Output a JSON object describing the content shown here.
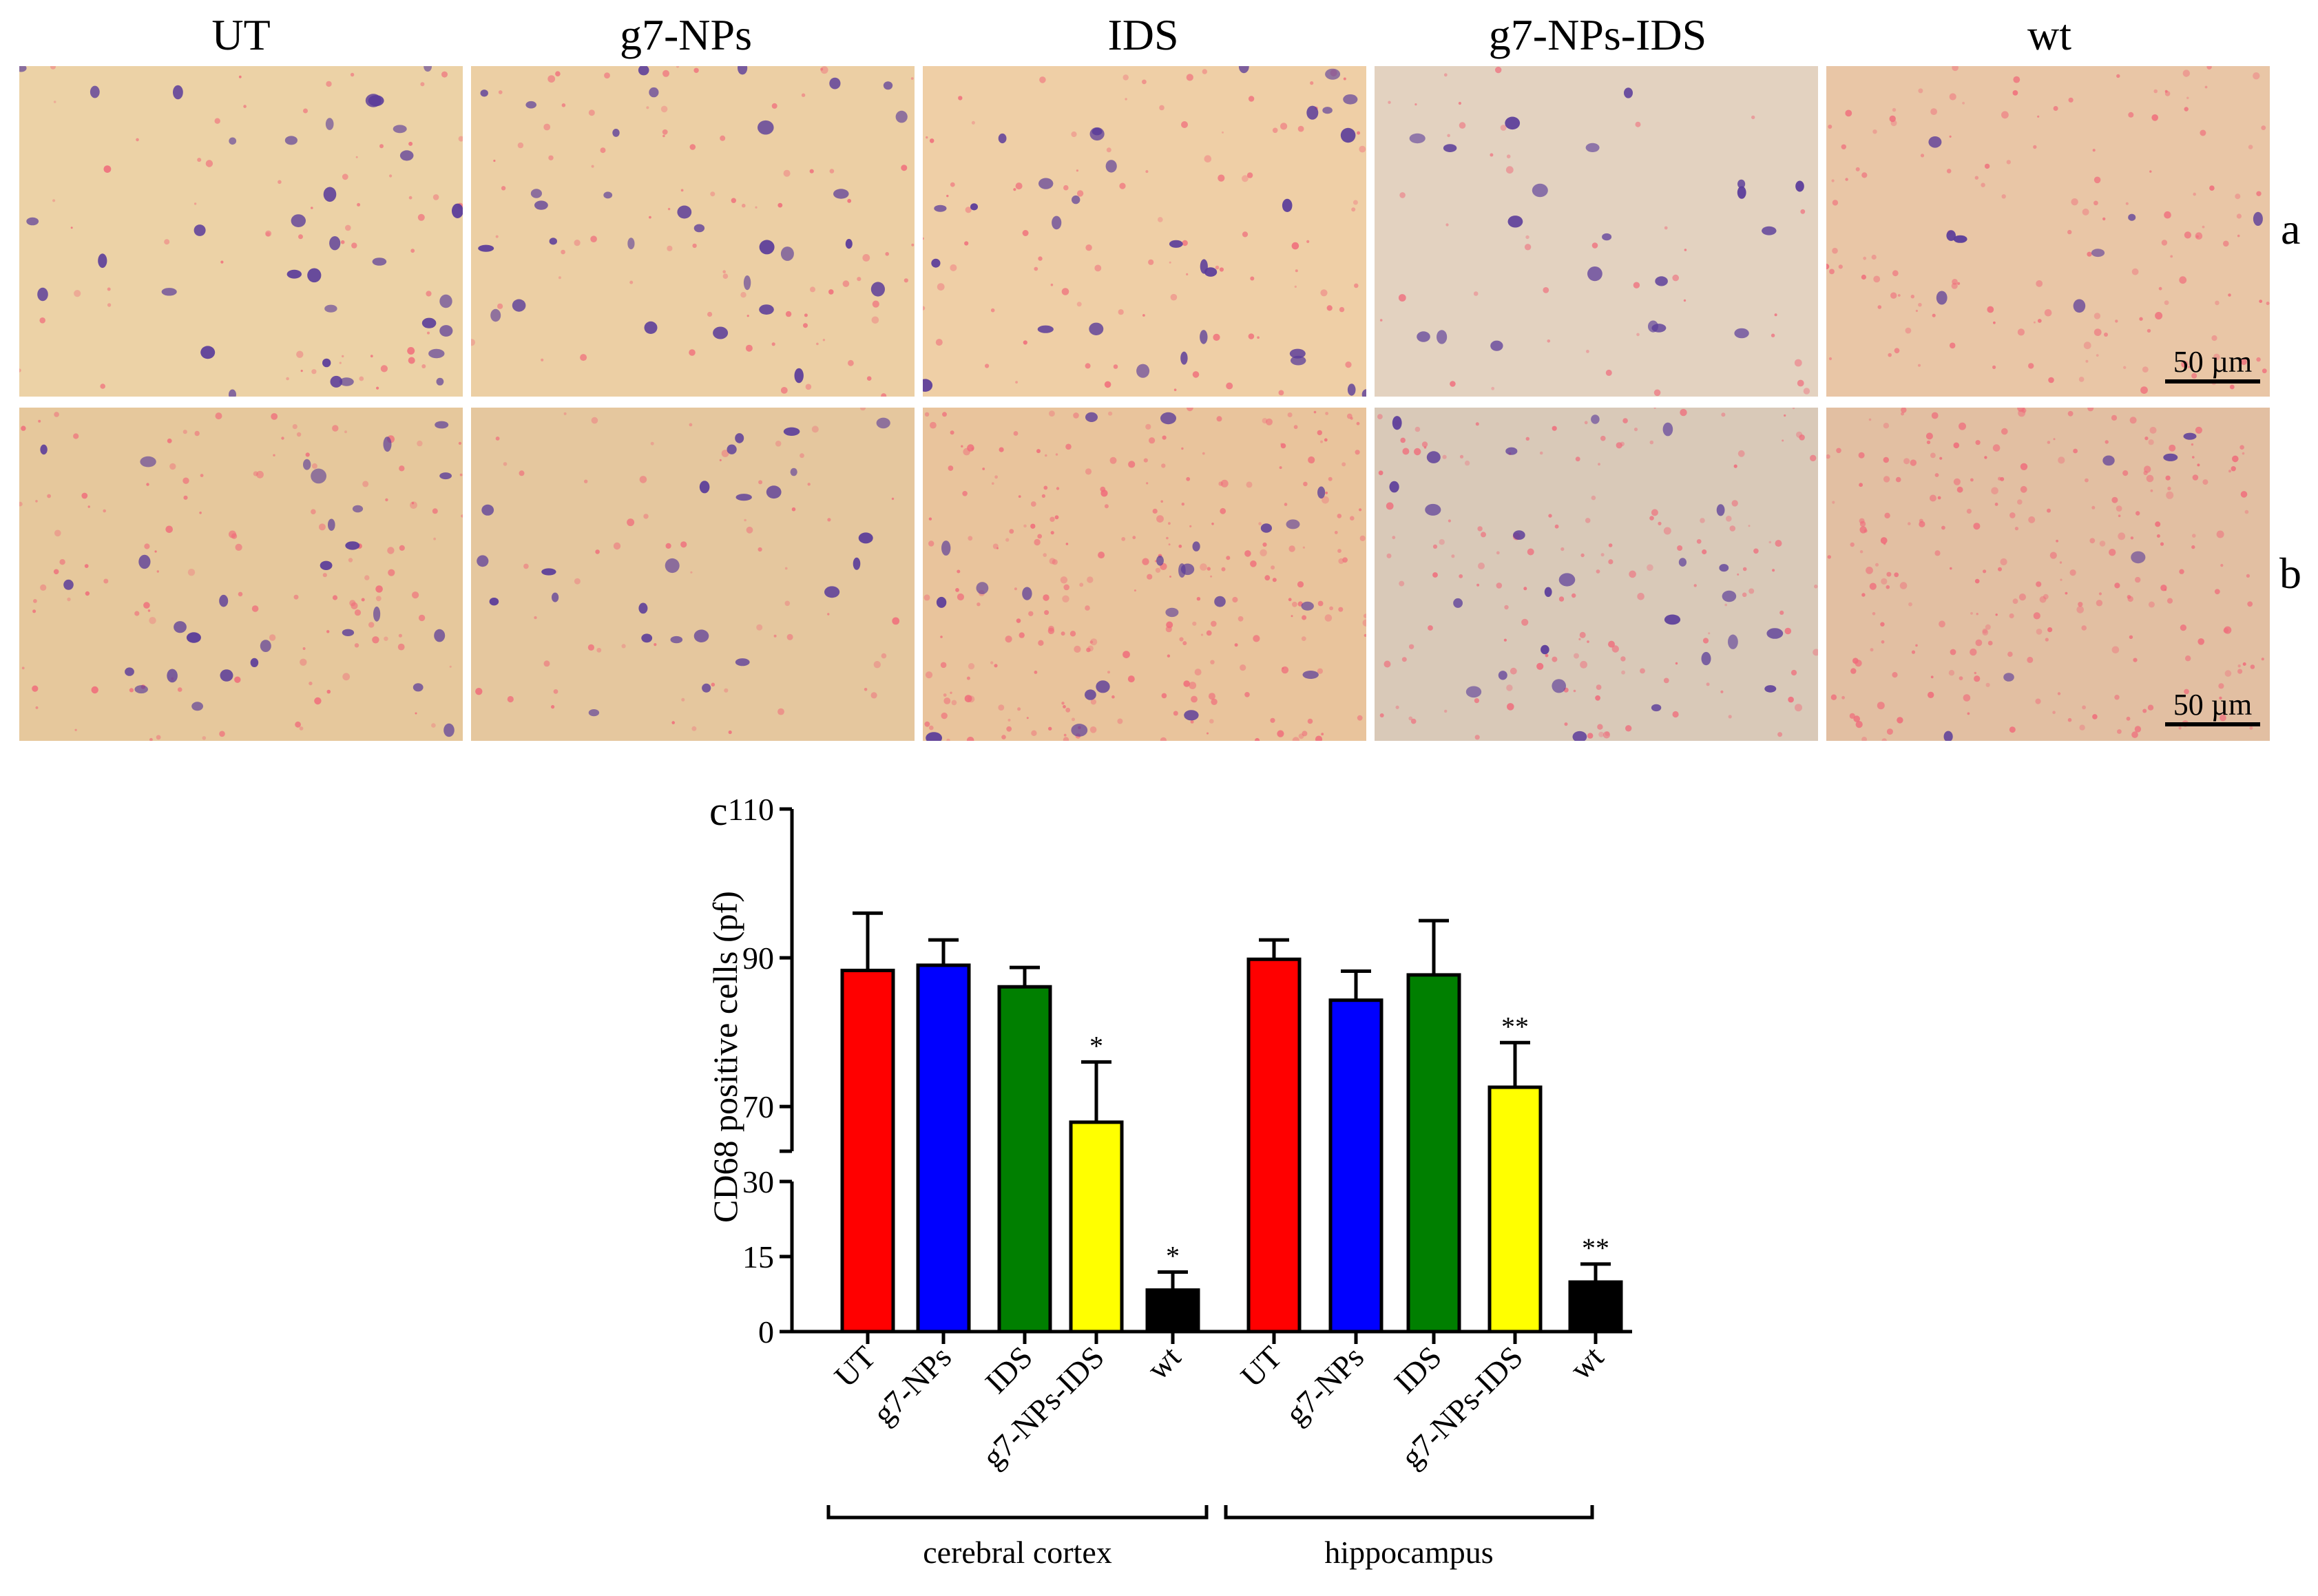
{
  "column_headers": [
    "UT",
    "g7-NPs",
    "IDS",
    "g7-NPs-IDS",
    "wt"
  ],
  "row_labels": [
    "a",
    "b"
  ],
  "scale_bar_label": "50 µm",
  "panel_label_c": "c",
  "colors": {
    "UT": "#ff0000",
    "g7-NPs": "#0000ff",
    "IDS": "#007f00",
    "g7-NPs-IDS": "#ffff00",
    "wt": "#000000",
    "tissue_background": "#e8caa0",
    "nucleus_stain": "#5a3c9a",
    "eosin_stain": "#f06a7a"
  },
  "chart_data": {
    "type": "bar",
    "ylabel": "CD68 positive cells (pf)",
    "y_broken_axis": true,
    "lower_segment": {
      "ylim": [
        0,
        30
      ],
      "ticks": [
        "0",
        "15",
        "30"
      ]
    },
    "upper_segment": {
      "ylim": [
        64,
        110
      ],
      "ticks": [
        "70",
        "90",
        "110"
      ]
    },
    "categories": [
      "UT",
      "g7-NPs",
      "IDS",
      "g7-NPs-IDS",
      "wt",
      "UT",
      "g7-NPs",
      "IDS",
      "g7-NPs-IDS",
      "wt"
    ],
    "groups": [
      "cerebral cortex",
      "hippocampus"
    ],
    "values": [
      88.3,
      89.0,
      86.1,
      67.9,
      8.3,
      89.8,
      84.3,
      87.7,
      72.6,
      9.9
    ],
    "errors": [
      7.7,
      3.4,
      2.6,
      8.1,
      3.6,
      2.6,
      3.9,
      7.3,
      6.0,
      3.6
    ],
    "significance": [
      "",
      "",
      "",
      "*",
      "*",
      "",
      "",
      "",
      "**",
      "**"
    ]
  }
}
